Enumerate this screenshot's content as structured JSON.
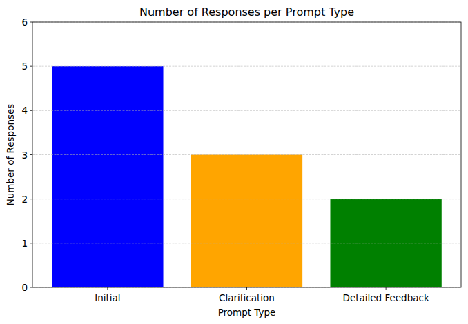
{
  "chart_data": {
    "type": "bar",
    "title": "Number of Responses per Prompt Type",
    "x_label": "Prompt Type",
    "y_label": "Number of Responses",
    "categories": [
      "Initial",
      "Clarification",
      "Detailed Feedback"
    ],
    "values": [
      5,
      3,
      2
    ],
    "colors": [
      "blue",
      "orange",
      "green"
    ],
    "ylim": [
      0,
      6
    ],
    "yticks": [
      0,
      1,
      2,
      3,
      4,
      5,
      6
    ],
    "grid": true
  }
}
